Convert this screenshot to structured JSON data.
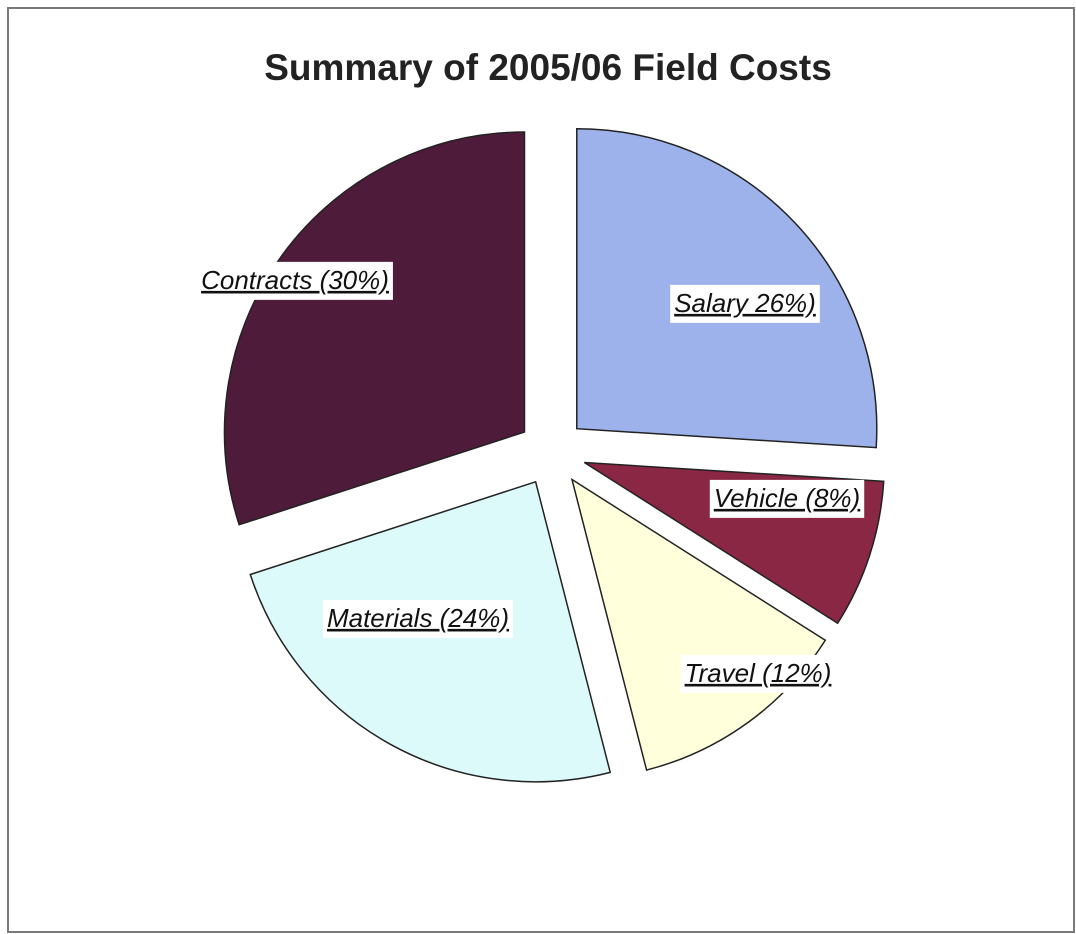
{
  "chart_data": {
    "type": "pie",
    "title": "Summary of 2005/06 Field Costs",
    "values": [
      26,
      8,
      12,
      24,
      30
    ],
    "value_labels": [
      "Salary  26%)",
      "Vehicle  (8%)",
      "Travel  (12%)",
      "Materials  (24%)",
      "Contracts (30%)"
    ],
    "colors": [
      "#9db2ea",
      "#8a2744",
      "#ffffdc",
      "#dcfafa",
      "#4f1b3b"
    ]
  }
}
